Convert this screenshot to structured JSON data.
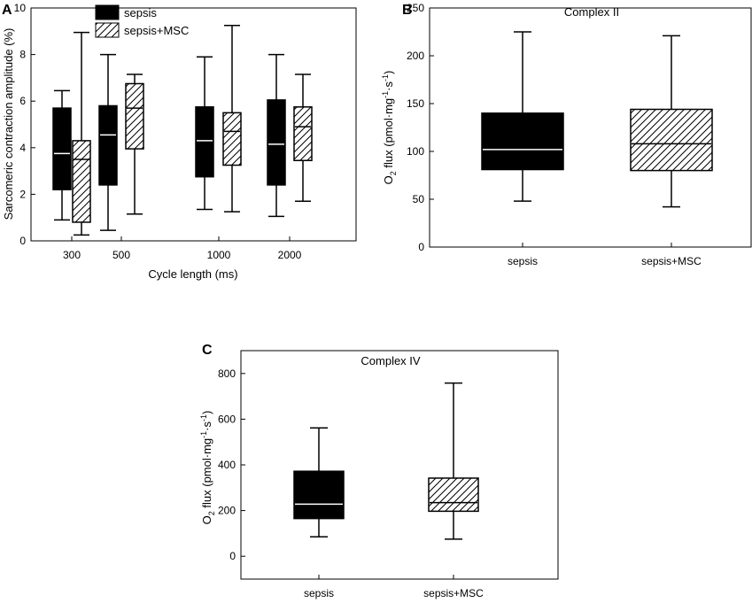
{
  "colors": {
    "sepsis": "#000000",
    "msc_fill": "#ffffff",
    "median_on_dark": "#ffffff",
    "median_on_light": "#000000"
  },
  "chart_data": [
    {
      "panel": "A",
      "type": "box",
      "title": "",
      "xlabel": "Cycle length (ms)",
      "ylabel": "Sarcomeric contraction amplitude (%)",
      "ylim": [
        0,
        10
      ],
      "yticks": [
        "0",
        "2",
        "4",
        "6",
        "8",
        "10"
      ],
      "categories": [
        "300",
        "500",
        "1000",
        "2000"
      ],
      "legend": {
        "position": "top",
        "entries": [
          "sepsis",
          "sepsis+MSC"
        ]
      },
      "series": [
        {
          "name": "sepsis",
          "pattern": "solid",
          "boxes": [
            {
              "min": 0.9,
              "q1": 2.2,
              "median": 3.75,
              "q3": 5.7,
              "max": 6.45
            },
            {
              "min": 0.45,
              "q1": 2.4,
              "median": 4.55,
              "q3": 5.8,
              "max": 8.0
            },
            {
              "min": 1.35,
              "q1": 2.75,
              "median": 4.3,
              "q3": 5.75,
              "max": 7.9
            },
            {
              "min": 1.05,
              "q1": 2.4,
              "median": 4.15,
              "q3": 6.05,
              "max": 8.0
            }
          ]
        },
        {
          "name": "sepsis+MSC",
          "pattern": "hatched",
          "boxes": [
            {
              "min": 0.25,
              "q1": 0.8,
              "median": 3.5,
              "q3": 4.3,
              "max": 8.95
            },
            {
              "min": 1.15,
              "q1": 3.95,
              "median": 5.7,
              "q3": 6.75,
              "max": 7.15
            },
            {
              "min": 1.25,
              "q1": 3.25,
              "median": 4.7,
              "q3": 5.5,
              "max": 9.25
            },
            {
              "min": 1.7,
              "q1": 3.45,
              "median": 4.9,
              "q3": 5.75,
              "max": 7.15
            }
          ]
        }
      ]
    },
    {
      "panel": "B",
      "type": "box",
      "title": "Complex II",
      "xlabel": "",
      "ylabel_parts": [
        "O",
        "2",
        " flux (pmol·mg",
        "-1",
        "·s",
        "-1",
        ")"
      ],
      "ylim": [
        0,
        250
      ],
      "yticks": [
        "0",
        "50",
        "100",
        "150",
        "200",
        "250"
      ],
      "categories": [
        "sepsis",
        "sepsis+MSC"
      ],
      "boxes": [
        {
          "name": "sepsis",
          "pattern": "solid",
          "min": 48,
          "q1": 81,
          "median": 102,
          "q3": 140,
          "max": 225
        },
        {
          "name": "sepsis+MSC",
          "pattern": "hatched",
          "min": 42,
          "q1": 80,
          "median": 108,
          "q3": 144,
          "max": 221
        }
      ]
    },
    {
      "panel": "C",
      "type": "box",
      "title": "Complex IV",
      "xlabel": "",
      "ylabel_parts": [
        "O",
        "2",
        " flux (pmol·mg",
        "-1",
        "·s",
        "-1",
        ")"
      ],
      "ylim": [
        -100,
        900
      ],
      "yticks": [
        "0",
        "200",
        "400",
        "600",
        "800"
      ],
      "categories": [
        "sepsis",
        "sepsis+MSC"
      ],
      "boxes": [
        {
          "name": "sepsis",
          "pattern": "solid",
          "min": 85,
          "q1": 165,
          "median": 228,
          "q3": 372,
          "max": 562
        },
        {
          "name": "sepsis+MSC",
          "pattern": "hatched",
          "min": 75,
          "q1": 197,
          "median": 235,
          "q3": 342,
          "max": 758
        }
      ]
    }
  ]
}
